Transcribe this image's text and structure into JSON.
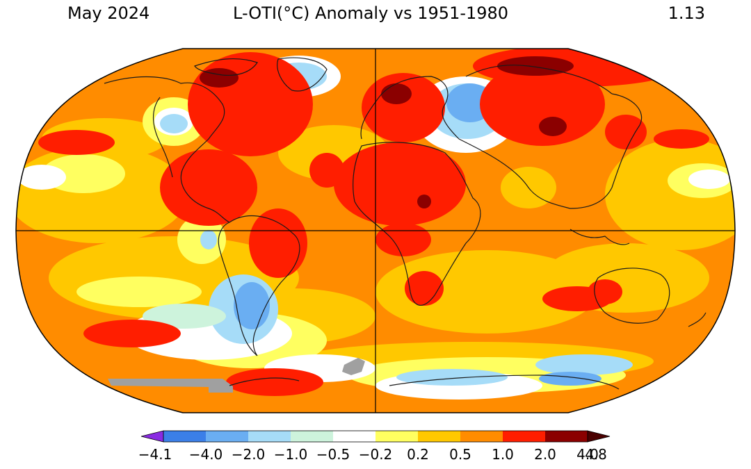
{
  "header": {
    "date": "May 2024",
    "title": "L-OTI(°C) Anomaly vs 1951-1980",
    "global_mean": "1.13"
  },
  "colorbar": {
    "colors": [
      "#8a2be2",
      "#3b7fe8",
      "#6aaef2",
      "#a6dcf8",
      "#cdf3dc",
      "#ffffff",
      "#ffff60",
      "#ffc800",
      "#ff8c00",
      "#ff1e00",
      "#8b0000",
      "#4a0000"
    ],
    "ticks": [
      "−4.1",
      "−4.0",
      "−2.0",
      "−1.0",
      "−0.5",
      "−0.2",
      "0.2",
      "0.5",
      "1.0",
      "2.0",
      "4.0",
      "4.8"
    ]
  },
  "palette": {
    "land_outline": "#1a1a1a",
    "no_data": "#a0a0a0",
    "grid": "#000000"
  }
}
